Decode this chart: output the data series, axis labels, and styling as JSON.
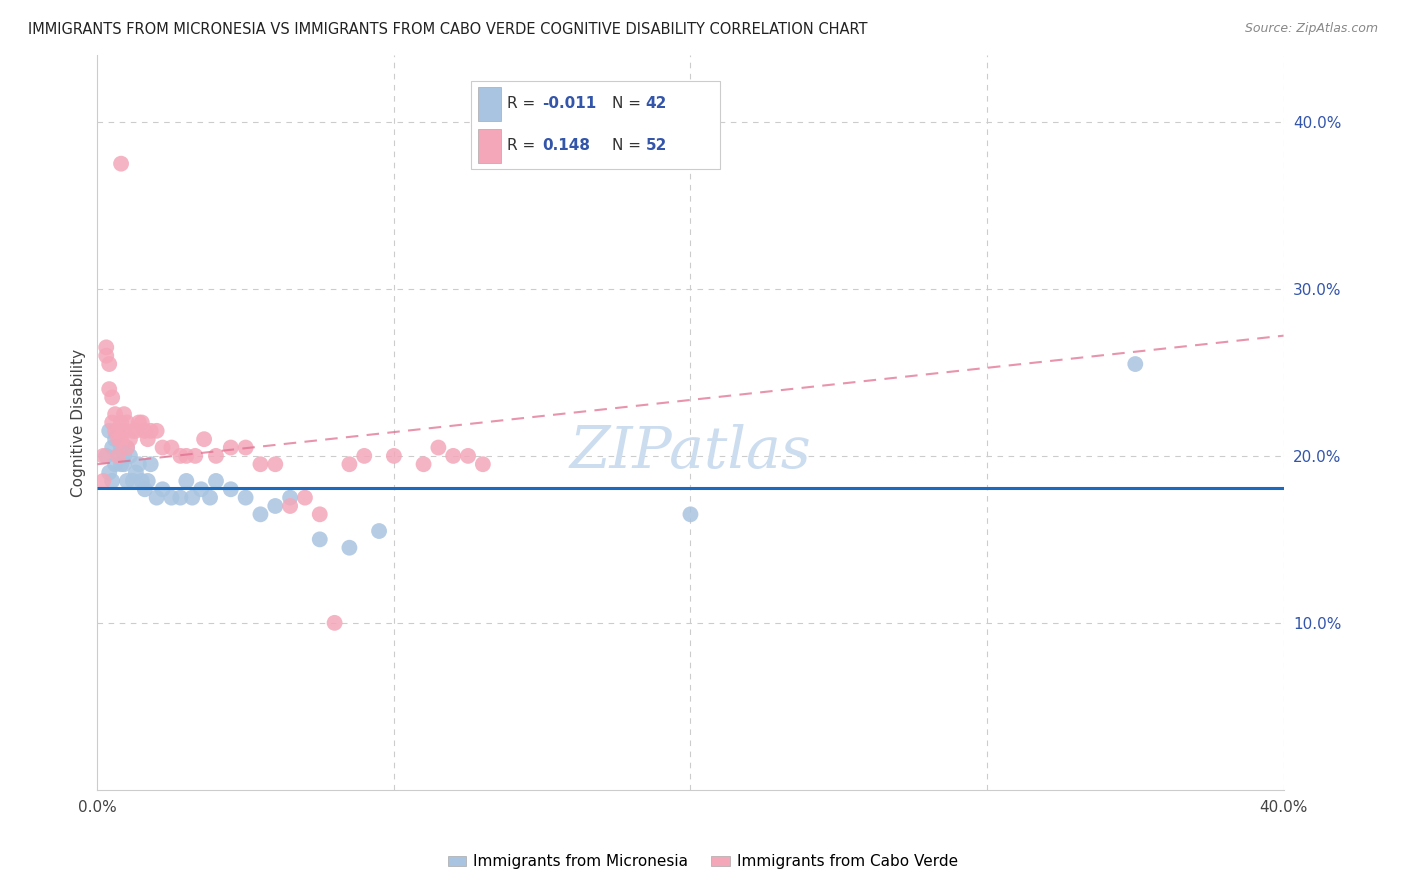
{
  "title": "IMMIGRANTS FROM MICRONESIA VS IMMIGRANTS FROM CABO VERDE COGNITIVE DISABILITY CORRELATION CHART",
  "source": "Source: ZipAtlas.com",
  "ylabel": "Cognitive Disability",
  "xlim": [
    0.0,
    0.4
  ],
  "ylim": [
    0.0,
    0.44
  ],
  "legend_blue_r": "-0.011",
  "legend_blue_n": "42",
  "legend_pink_r": "0.148",
  "legend_pink_n": "52",
  "legend_label_blue": "Immigrants from Micronesia",
  "legend_label_pink": "Immigrants from Cabo Verde",
  "blue_color": "#a8c4e0",
  "pink_color": "#f4a7b9",
  "blue_line_color": "#1a6bbf",
  "pink_line_color": "#e07090",
  "text_color": "#3355aa",
  "label_color": "#333333",
  "grid_color": "#cccccc",
  "watermark_color": "#ccddf0",
  "mic_x": [
    0.003,
    0.004,
    0.004,
    0.005,
    0.005,
    0.006,
    0.006,
    0.007,
    0.007,
    0.008,
    0.008,
    0.009,
    0.009,
    0.01,
    0.01,
    0.011,
    0.012,
    0.013,
    0.014,
    0.015,
    0.016,
    0.017,
    0.018,
    0.02,
    0.022,
    0.025,
    0.028,
    0.03,
    0.032,
    0.035,
    0.038,
    0.04,
    0.045,
    0.05,
    0.055,
    0.06,
    0.065,
    0.075,
    0.085,
    0.095,
    0.2,
    0.35
  ],
  "mic_y": [
    0.2,
    0.215,
    0.19,
    0.205,
    0.185,
    0.195,
    0.21,
    0.215,
    0.2,
    0.205,
    0.195,
    0.2,
    0.195,
    0.205,
    0.185,
    0.2,
    0.185,
    0.19,
    0.195,
    0.185,
    0.18,
    0.185,
    0.195,
    0.175,
    0.18,
    0.175,
    0.175,
    0.185,
    0.175,
    0.18,
    0.175,
    0.185,
    0.18,
    0.175,
    0.165,
    0.17,
    0.175,
    0.15,
    0.145,
    0.155,
    0.165,
    0.255
  ],
  "cv_x": [
    0.002,
    0.002,
    0.003,
    0.003,
    0.004,
    0.004,
    0.005,
    0.005,
    0.006,
    0.006,
    0.007,
    0.007,
    0.007,
    0.008,
    0.008,
    0.008,
    0.009,
    0.009,
    0.01,
    0.01,
    0.011,
    0.012,
    0.013,
    0.014,
    0.015,
    0.016,
    0.017,
    0.018,
    0.02,
    0.022,
    0.025,
    0.028,
    0.03,
    0.033,
    0.036,
    0.04,
    0.045,
    0.05,
    0.055,
    0.06,
    0.065,
    0.07,
    0.075,
    0.08,
    0.085,
    0.09,
    0.1,
    0.11,
    0.115,
    0.12,
    0.125,
    0.13
  ],
  "cv_y": [
    0.2,
    0.185,
    0.265,
    0.26,
    0.255,
    0.24,
    0.235,
    0.22,
    0.225,
    0.215,
    0.215,
    0.21,
    0.2,
    0.375,
    0.22,
    0.21,
    0.225,
    0.215,
    0.22,
    0.205,
    0.21,
    0.215,
    0.215,
    0.22,
    0.22,
    0.215,
    0.21,
    0.215,
    0.215,
    0.205,
    0.205,
    0.2,
    0.2,
    0.2,
    0.21,
    0.2,
    0.205,
    0.205,
    0.195,
    0.195,
    0.17,
    0.175,
    0.165,
    0.1,
    0.195,
    0.2,
    0.2,
    0.195,
    0.205,
    0.2,
    0.2,
    0.195
  ],
  "blue_line_y0": 0.181,
  "blue_line_y1": 0.181,
  "pink_line_y0": 0.195,
  "pink_line_y1": 0.272
}
